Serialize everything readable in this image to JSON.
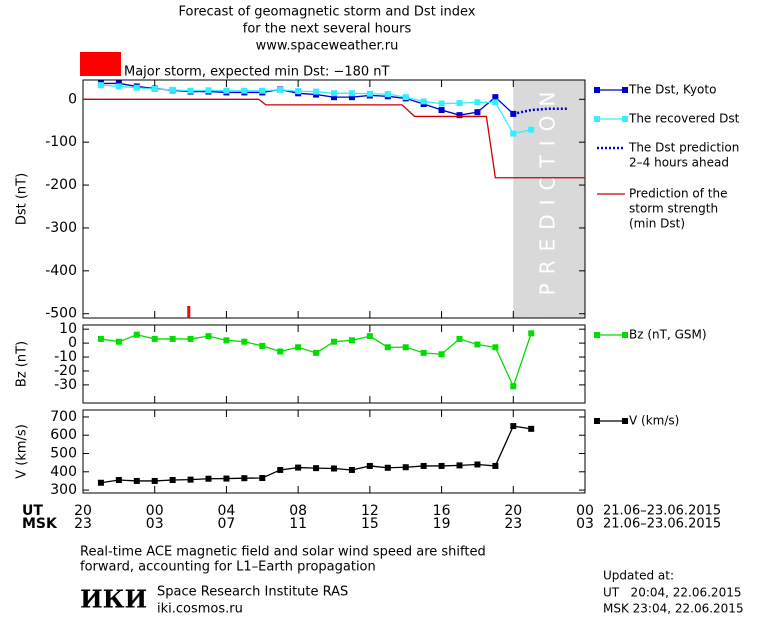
{
  "header": {
    "title_lines": [
      "Forecast of geomagnetic storm and Dst index",
      "for the next several hours",
      "www.spaceweather.ru"
    ],
    "alert": {
      "text": "Major storm, expected min Dst: −180 nT",
      "color": "#ff0000"
    }
  },
  "chart_data": [
    {
      "type": "line",
      "ylabel": "Dst (nT)",
      "xlim": [
        0,
        28
      ],
      "ylim": [
        -510,
        45
      ],
      "yticks": [
        0,
        -100,
        -200,
        -300,
        -400,
        -500
      ],
      "prediction_region": {
        "x": [
          24,
          28
        ],
        "label": "PREDICTION"
      },
      "storm_marker_x": 5.9,
      "series": [
        {
          "name": [
            "The Dst, Kyoto"
          ],
          "color": "#0000cc",
          "marker": "square",
          "x": [
            1,
            2,
            3,
            4,
            5,
            6,
            7,
            8,
            9,
            10,
            11,
            12,
            13,
            14,
            15,
            16,
            17,
            18,
            19,
            20,
            21,
            22,
            23,
            24
          ],
          "values": [
            37,
            37,
            30,
            25,
            21,
            18,
            18,
            16,
            16,
            16,
            23,
            14,
            11,
            5,
            5,
            9,
            7,
            2,
            -11,
            -25,
            -37,
            -30,
            5,
            -34
          ]
        },
        {
          "name": [
            "The recovered Dst"
          ],
          "color": "#33eeff",
          "marker": "square",
          "x": [
            1,
            2,
            3,
            4,
            5,
            6,
            7,
            8,
            9,
            10,
            11,
            12,
            13,
            14,
            15,
            16,
            17,
            18,
            19,
            20,
            21,
            22,
            23,
            24,
            25
          ],
          "values": [
            33,
            30,
            27,
            24,
            22,
            20,
            21,
            20,
            20,
            20,
            22,
            19,
            18,
            14,
            14,
            13,
            12,
            5,
            -5,
            -10,
            -9,
            -7,
            -7,
            -80,
            -71
          ]
        },
        {
          "name": [
            "The Dst prediction",
            "2–4 hours ahead"
          ],
          "color": "#0000cc",
          "dash": true,
          "x": [
            24,
            25,
            26,
            27
          ],
          "values": [
            -34,
            -25,
            -22,
            -22
          ]
        },
        {
          "name": [
            "Prediction of the",
            "storm strength",
            "(min Dst)"
          ],
          "color": "#cc0000",
          "x": [
            0,
            9.8,
            10.2,
            17.8,
            18.5,
            22.5,
            23,
            28
          ],
          "values": [
            0,
            0,
            -13,
            -13,
            -40,
            -40,
            -183,
            -183
          ]
        }
      ]
    },
    {
      "type": "line",
      "ylabel": "Bz (nT)",
      "xlim": [
        0,
        28
      ],
      "ylim": [
        -43,
        13
      ],
      "yticks": [
        10,
        0,
        -10,
        -20,
        -30
      ],
      "series": [
        {
          "name": [
            "Bz (nT, GSM)"
          ],
          "color": "#00dd00",
          "marker": "square",
          "x": [
            1,
            2,
            3,
            4,
            5,
            6,
            7,
            8,
            9,
            10,
            11,
            12,
            13,
            14,
            15,
            16,
            17,
            18,
            19,
            20,
            21,
            22,
            23,
            24,
            25
          ],
          "values": [
            3,
            1,
            6,
            3,
            3,
            3,
            5,
            2,
            1,
            -2,
            -6,
            -3,
            -7,
            1,
            2,
            5,
            -3,
            -3,
            -7,
            -8,
            3,
            -1,
            -3,
            -31,
            7
          ]
        }
      ]
    },
    {
      "type": "line",
      "ylabel": "V (km/s)",
      "xlim": [
        0,
        28
      ],
      "ylim": [
        284,
        738
      ],
      "yticks": [
        700,
        600,
        500,
        400,
        300
      ],
      "xticks": [
        {
          "value": 0,
          "label": "20"
        },
        {
          "value": 4,
          "label": "00"
        },
        {
          "value": 8,
          "label": "04"
        },
        {
          "value": 12,
          "label": "08"
        },
        {
          "value": 16,
          "label": "12"
        },
        {
          "value": 20,
          "label": "16"
        },
        {
          "value": 24,
          "label": "20"
        },
        {
          "value": 28,
          "label": "00"
        }
      ],
      "x2_tick_labels": [
        "23",
        "03",
        "07",
        "11",
        "15",
        "19",
        "23",
        "03"
      ],
      "x_row_labels": [
        "UT",
        "MSK"
      ],
      "date_range": "21.06–23.06.2015",
      "series": [
        {
          "name": [
            "V (km/s)"
          ],
          "color": "#000000",
          "marker": "square",
          "x": [
            1,
            2,
            3,
            4,
            5,
            6,
            7,
            8,
            9,
            10,
            11,
            12,
            13,
            14,
            15,
            16,
            17,
            18,
            19,
            20,
            21,
            22,
            23,
            24,
            25
          ],
          "values": [
            340,
            355,
            350,
            350,
            355,
            357,
            362,
            363,
            365,
            366,
            410,
            423,
            420,
            418,
            410,
            432,
            422,
            425,
            432,
            432,
            435,
            440,
            432,
            650,
            635
          ]
        }
      ]
    }
  ],
  "footer": {
    "note_lines": [
      "Real-time ACE magnetic field and solar wind speed are shifted",
      "forward, accounting for L1–Earth propagation"
    ],
    "logo": "ИКИ",
    "institute": "Space Research Institute RAS",
    "site": "iki.cosmos.ru",
    "updated": [
      "Updated at:",
      "UT   20:04, 22.06.2015",
      "MSK 23:04, 22.06.2015"
    ]
  }
}
